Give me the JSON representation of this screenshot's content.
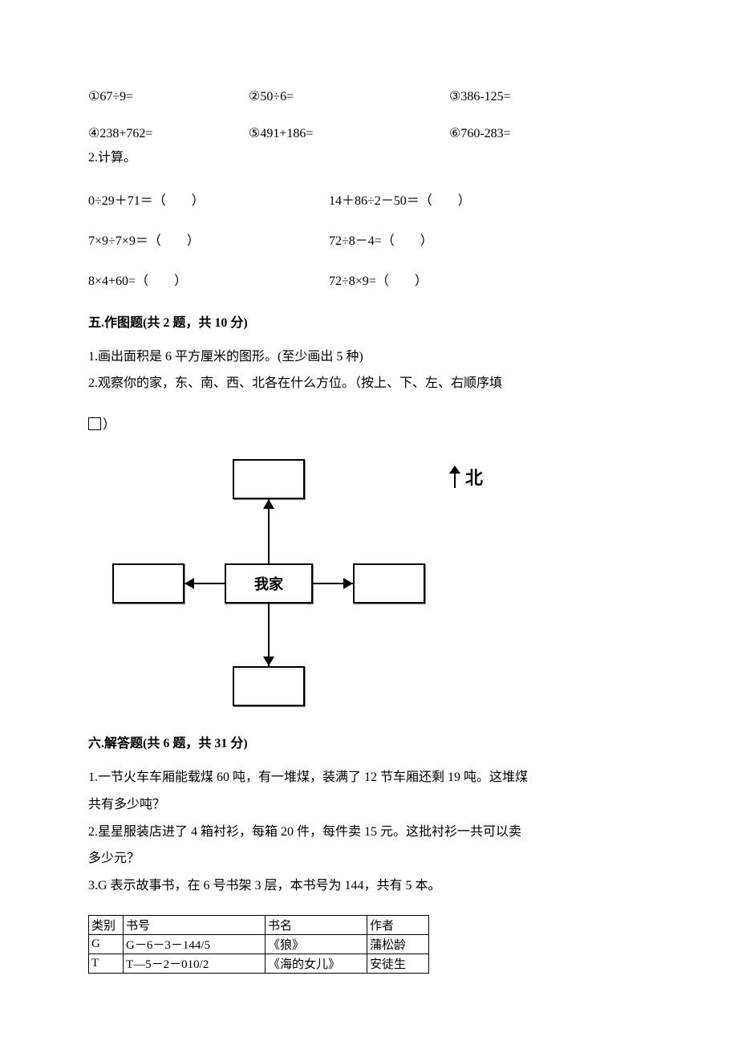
{
  "equations_row1": {
    "c1": "①67÷9=",
    "c2": "②50÷6=",
    "c3": "③386-125="
  },
  "equations_row2": {
    "c1": "④238+762=",
    "c2": "⑤491+186=",
    "c3": "⑥760-283="
  },
  "calc_header": "2.计算。",
  "calc_row1": {
    "left": "0÷29＋71＝（　　）",
    "right": "14＋86÷2－50＝（　　）"
  },
  "calc_row2": {
    "left": "7×9÷7×9＝（　　）",
    "right": "72÷8－4=（　　）"
  },
  "calc_row3": {
    "left": "8×4+60=（　　）",
    "right": "72÷8×9=（　　）"
  },
  "section5": {
    "title": "五.作图题(共 2 题，共 10 分)",
    "q1": "1.画出面积是 6 平方厘米的图形。(至少画出 5 种)",
    "q2": "2.观察你的家，东、南、西、北各在什么方位。（按上、下、左、右顺序填",
    "q2b": "）"
  },
  "diagram": {
    "center": "我家",
    "north_label": "北"
  },
  "section6": {
    "title": "六.解答题(共 6 题，共 31 分)",
    "q1a": "1.一节火车车厢能载煤 60 吨，有一堆煤，装满了 12 节车厢还剩 19 吨。这堆煤",
    "q1b": "共有多少吨？",
    "q2a": "2.星星服装店进了 4 箱衬衫，每箱 20 件，每件卖 15 元。这批衬衫一共可以卖",
    "q2b": "多少元？",
    "q3": "3.G 表示故事书，在 6 号书架 3 层，本书号为 144，共有 5 本。"
  },
  "table": {
    "headers": {
      "cat": "类别",
      "code": "书号",
      "name": "书名",
      "auth": "作者"
    },
    "rows": [
      {
        "cat": "G",
        "code": "G－6－3－144/5",
        "name": "《狼》",
        "auth": "蒲松龄"
      },
      {
        "cat": "T",
        "code": "T—5－2－010/2",
        "name": "《海的女儿》",
        "auth": "安徒生"
      }
    ]
  },
  "colors": {
    "text": "#000000",
    "background": "#ffffff",
    "border": "#000000"
  },
  "typography": {
    "body_font": "SimSun",
    "body_size_pt": 12,
    "header_weight": "bold"
  }
}
